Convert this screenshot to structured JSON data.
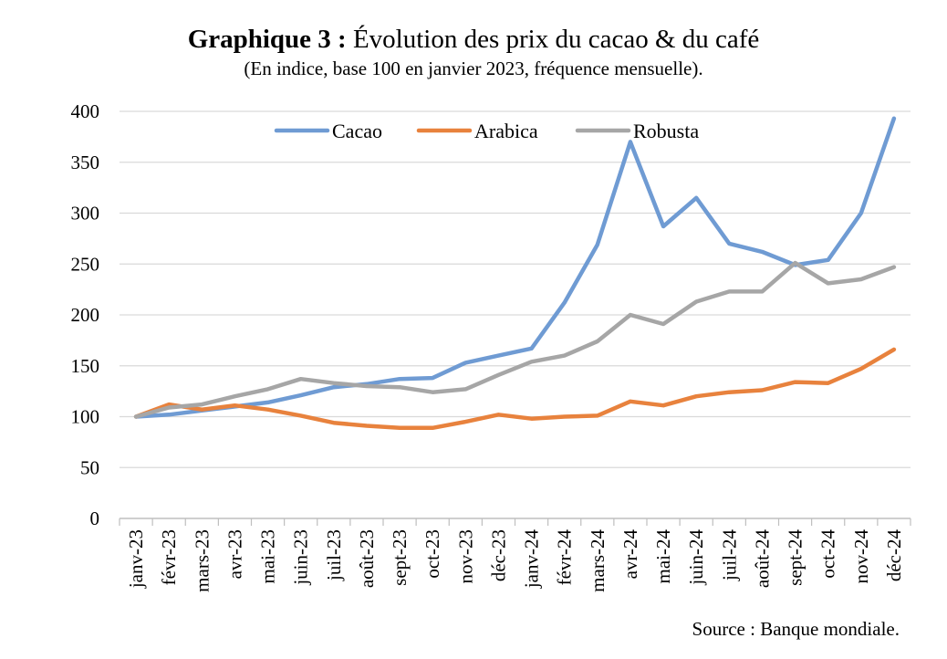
{
  "title_prefix": "Graphique 3 :",
  "title_text": "Évolution des prix du cacao & du café",
  "subtitle": "(En indice, base 100 en janvier 2023, fréquence mensuelle).",
  "source": "Source : Banque mondiale.",
  "chart_data": {
    "type": "line",
    "title": "Graphique 3 : Évolution des prix du cacao & du café",
    "subtitle": "(En indice, base 100 en janvier 2023, fréquence mensuelle).",
    "xlabel": "",
    "ylabel": "",
    "ylim": [
      0,
      400
    ],
    "yticks": [
      0,
      50,
      100,
      150,
      200,
      250,
      300,
      350,
      400
    ],
    "grid": true,
    "legend_position": "top",
    "categories": [
      "janv-23",
      "févr-23",
      "mars-23",
      "avr-23",
      "mai-23",
      "juin-23",
      "juil-23",
      "août-23",
      "sept-23",
      "oct-23",
      "nov-23",
      "déc-23",
      "janv-24",
      "févr-24",
      "mars-24",
      "avr-24",
      "mai-24",
      "juin-24",
      "juil-24",
      "août-24",
      "sept-24",
      "oct-24",
      "nov-24",
      "déc-24"
    ],
    "series": [
      {
        "name": "Cacao",
        "color": "#6F9BD3",
        "values": [
          100,
          102,
          106,
          110,
          114,
          121,
          129,
          132,
          137,
          138,
          153,
          160,
          167,
          212,
          269,
          370,
          287,
          315,
          270,
          262,
          249,
          254,
          300,
          393
        ]
      },
      {
        "name": "Arabica",
        "color": "#E8823D",
        "values": [
          100,
          112,
          107,
          111,
          107,
          101,
          94,
          91,
          89,
          89,
          95,
          102,
          98,
          100,
          101,
          115,
          111,
          120,
          124,
          126,
          134,
          133,
          147,
          166
        ]
      },
      {
        "name": "Robusta",
        "color": "#A6A6A6",
        "values": [
          100,
          109,
          112,
          120,
          127,
          137,
          133,
          130,
          129,
          124,
          127,
          141,
          154,
          160,
          174,
          200,
          191,
          213,
          223,
          223,
          251,
          231,
          235,
          247
        ]
      }
    ],
    "source": "Source : Banque mondiale."
  }
}
